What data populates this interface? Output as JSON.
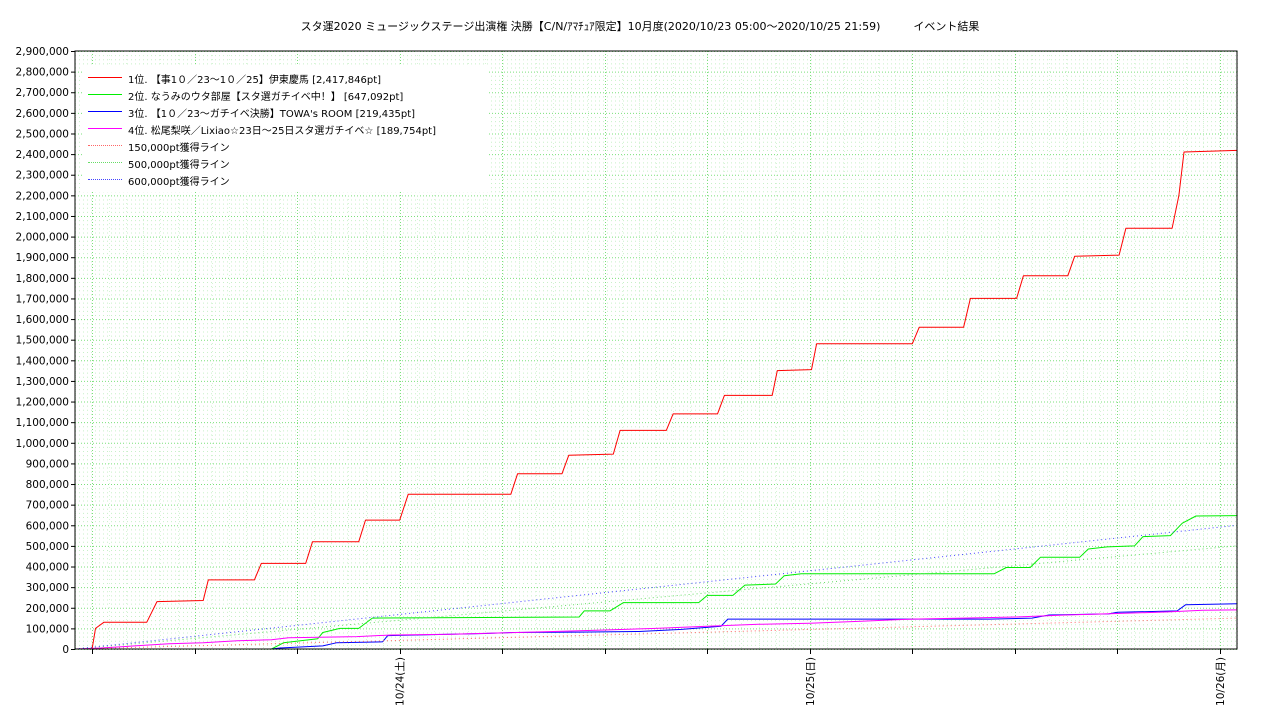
{
  "chart_data": {
    "type": "line",
    "title": "スタ運2020 ミュージックステージ出演権 決勝【C/N/ｱﾏﾁｭｱ限定】10月度(2020/10/23 05:00〜2020/10/25 21:59)　　　イベント結果",
    "xlabel": "",
    "ylabel": "",
    "ylim": [
      0,
      2900000
    ],
    "yticks": [
      "0",
      "100,000",
      "200,000",
      "300,000",
      "400,000",
      "500,000",
      "600,000",
      "700,000",
      "800,000",
      "900,000",
      "1,000,000",
      "1,100,000",
      "1,200,000",
      "1,300,000",
      "1,400,000",
      "1,500,000",
      "1,600,000",
      "1,700,000",
      "1,800,000",
      "1,900,000",
      "2,000,000",
      "2,100,000",
      "2,200,000",
      "2,300,000",
      "2,400,000",
      "2,500,000",
      "2,600,000",
      "2,700,000",
      "2,800,000",
      "2,900,000"
    ],
    "xlim_hours": [
      0,
      68
    ],
    "xtick_labels": [
      {
        "hour": 19,
        "label": "10/24(土)"
      },
      {
        "hour": 43,
        "label": "10/25(日)"
      },
      {
        "hour": 67,
        "label": "10/26(月)"
      }
    ],
    "grid": true,
    "legend_position": "top-left",
    "series": [
      {
        "name": "1位. 【事1０／23〜1０／25】伊東慶馬 [2,417,846pt]",
        "color": "#ff0000",
        "style": "solid",
        "points": [
          [
            0,
            0
          ],
          [
            1,
            0
          ],
          [
            1.2,
            100000
          ],
          [
            1.7,
            130000
          ],
          [
            4.2,
            130000
          ],
          [
            4.8,
            230000
          ],
          [
            7.5,
            235000
          ],
          [
            7.8,
            335000
          ],
          [
            10.5,
            335000
          ],
          [
            10.9,
            415000
          ],
          [
            13.5,
            415000
          ],
          [
            13.9,
            520000
          ],
          [
            16.6,
            520000
          ],
          [
            17.0,
            625000
          ],
          [
            19.0,
            625000
          ],
          [
            19.5,
            750000
          ],
          [
            25.5,
            750000
          ],
          [
            25.9,
            850000
          ],
          [
            28.5,
            850000
          ],
          [
            28.9,
            940000
          ],
          [
            31.5,
            945000
          ],
          [
            31.9,
            1060000
          ],
          [
            34.6,
            1060000
          ],
          [
            35.0,
            1140000
          ],
          [
            37.6,
            1140000
          ],
          [
            38.0,
            1230000
          ],
          [
            40.8,
            1230000
          ],
          [
            41.1,
            1350000
          ],
          [
            43.1,
            1355000
          ],
          [
            43.4,
            1480000
          ],
          [
            49.0,
            1480000
          ],
          [
            49.4,
            1560000
          ],
          [
            52.0,
            1560000
          ],
          [
            52.4,
            1700000
          ],
          [
            55.1,
            1700000
          ],
          [
            55.5,
            1810000
          ],
          [
            58.1,
            1810000
          ],
          [
            58.5,
            1905000
          ],
          [
            61.1,
            1910000
          ],
          [
            61.5,
            2040000
          ],
          [
            64.2,
            2040000
          ],
          [
            64.6,
            2200000
          ],
          [
            64.9,
            2410000
          ],
          [
            68,
            2417846
          ]
        ]
      },
      {
        "name": "2位. なうみのウタ部屋【スタ選ガチイベ中！】 [647,092pt]",
        "color": "#00ee00",
        "style": "solid",
        "points": [
          [
            0,
            0
          ],
          [
            11.5,
            0
          ],
          [
            12.2,
            30000
          ],
          [
            14.2,
            50000
          ],
          [
            14.5,
            80000
          ],
          [
            15.5,
            100000
          ],
          [
            16.6,
            100000
          ],
          [
            17.4,
            150000
          ],
          [
            29.5,
            155000
          ],
          [
            29.8,
            185000
          ],
          [
            31.3,
            185000
          ],
          [
            32.1,
            225000
          ],
          [
            36.5,
            225000
          ],
          [
            37.0,
            260000
          ],
          [
            38.5,
            260000
          ],
          [
            39.2,
            310000
          ],
          [
            41.0,
            315000
          ],
          [
            41.5,
            355000
          ],
          [
            42.5,
            365000
          ],
          [
            53.8,
            365000
          ],
          [
            54.5,
            395000
          ],
          [
            55.9,
            395000
          ],
          [
            56.5,
            445000
          ],
          [
            58.8,
            445000
          ],
          [
            59.3,
            485000
          ],
          [
            60.4,
            495000
          ],
          [
            62.0,
            500000
          ],
          [
            62.5,
            545000
          ],
          [
            64.1,
            550000
          ],
          [
            64.8,
            610000
          ],
          [
            65.6,
            645000
          ],
          [
            68,
            647092
          ]
        ]
      },
      {
        "name": "3位. 【1０／23〜ガチイベ決勝】TOWA's ROOM [219,435pt]",
        "color": "#0000ff",
        "style": "solid",
        "points": [
          [
            0,
            0
          ],
          [
            11.5,
            0
          ],
          [
            12,
            5000
          ],
          [
            14.5,
            15000
          ],
          [
            15.3,
            30000
          ],
          [
            18.0,
            35000
          ],
          [
            18.3,
            65000
          ],
          [
            24.0,
            75000
          ],
          [
            25.6,
            80000
          ],
          [
            29.5,
            82000
          ],
          [
            33.0,
            85000
          ],
          [
            35.5,
            95000
          ],
          [
            37.8,
            110000
          ],
          [
            38.2,
            145000
          ],
          [
            45.0,
            145000
          ],
          [
            53.5,
            145000
          ],
          [
            56.0,
            150000
          ],
          [
            57.0,
            165000
          ],
          [
            60.5,
            170000
          ],
          [
            61.0,
            178000
          ],
          [
            64.5,
            185000
          ],
          [
            65.0,
            215000
          ],
          [
            68,
            219435
          ]
        ]
      },
      {
        "name": "4位. 松尾梨咲／Lixiao☆23日〜25日スタ選ガチイベ☆ [189,754pt]",
        "color": "#ff00ff",
        "style": "solid",
        "points": [
          [
            0,
            0
          ],
          [
            1.5,
            5000
          ],
          [
            3.5,
            15000
          ],
          [
            5.5,
            25000
          ],
          [
            7.5,
            30000
          ],
          [
            9.5,
            40000
          ],
          [
            11.5,
            45000
          ],
          [
            12.5,
            55000
          ],
          [
            16.5,
            60000
          ],
          [
            18.5,
            68000
          ],
          [
            22.0,
            72000
          ],
          [
            25.0,
            78000
          ],
          [
            28.0,
            85000
          ],
          [
            31.0,
            92000
          ],
          [
            34.0,
            100000
          ],
          [
            37.0,
            110000
          ],
          [
            40.0,
            120000
          ],
          [
            43.0,
            125000
          ],
          [
            46.0,
            135000
          ],
          [
            49.0,
            145000
          ],
          [
            52.0,
            150000
          ],
          [
            55.0,
            155000
          ],
          [
            58.0,
            165000
          ],
          [
            61.0,
            172000
          ],
          [
            64.0,
            180000
          ],
          [
            66.0,
            188000
          ],
          [
            68,
            189754
          ]
        ]
      },
      {
        "name": "150,000pt獲得ライン",
        "color": "#ff6666",
        "style": "dotted",
        "points": [
          [
            0,
            0
          ],
          [
            68,
            150000
          ]
        ]
      },
      {
        "name": "500,000pt獲得ライン",
        "color": "#66dd66",
        "style": "dotted",
        "points": [
          [
            0,
            0
          ],
          [
            68,
            500000
          ]
        ]
      },
      {
        "name": "600,000pt獲得ライン",
        "color": "#4444ff",
        "style": "dotted",
        "points": [
          [
            0,
            0
          ],
          [
            68,
            600000
          ]
        ]
      }
    ]
  }
}
